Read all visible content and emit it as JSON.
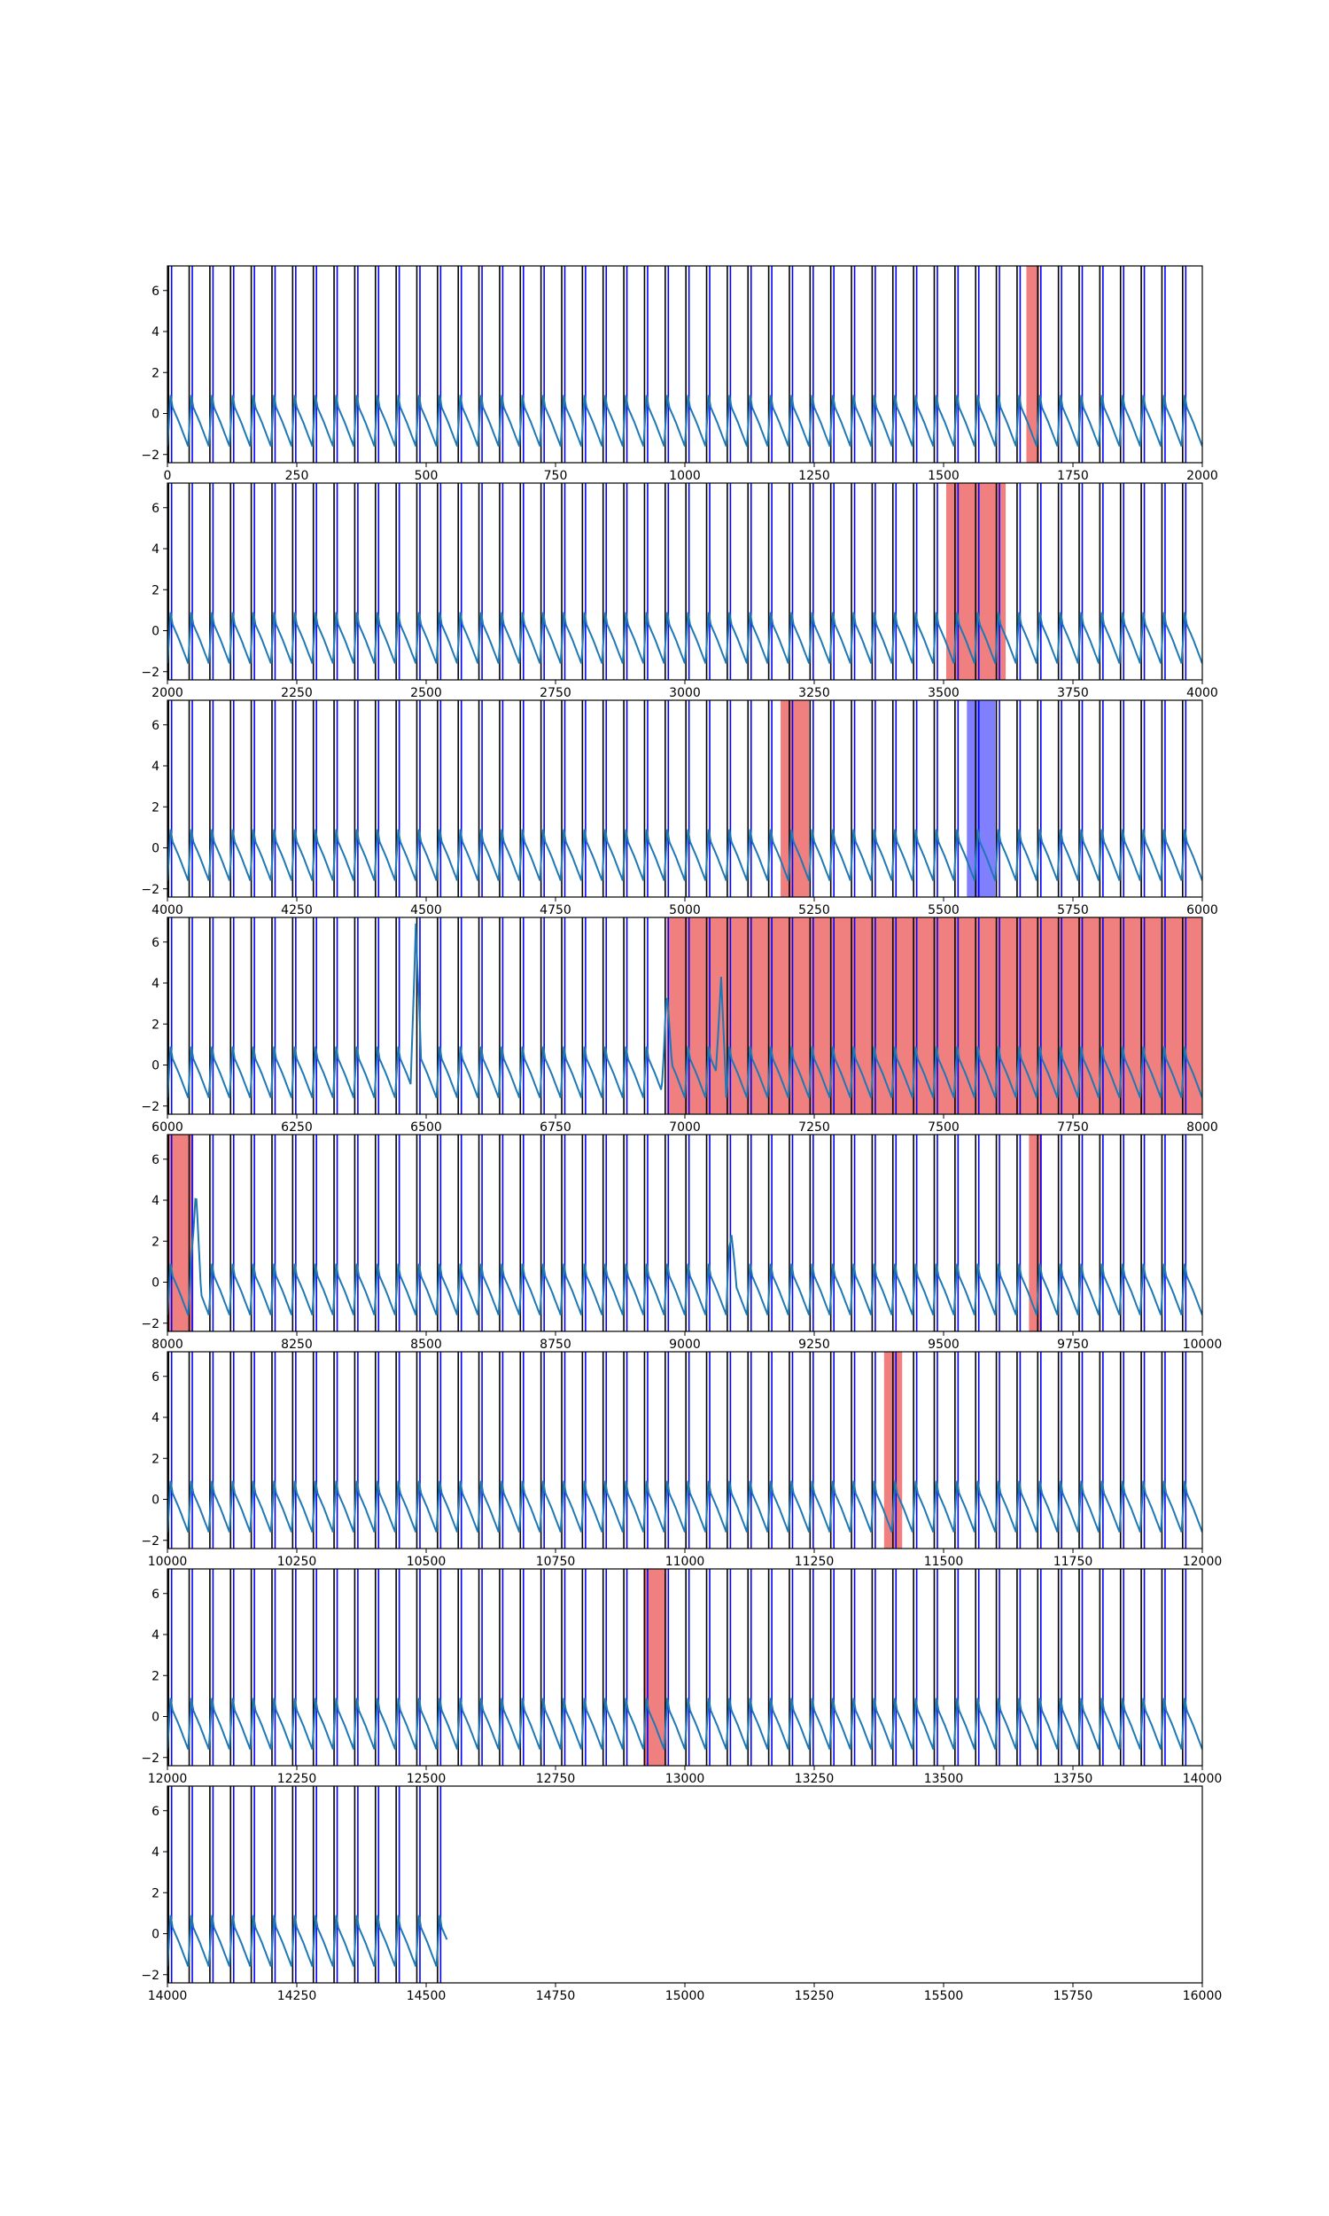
{
  "chart_data": {
    "type": "line",
    "layout": "stacked-panels",
    "ylim": [
      -2.4,
      7.2
    ],
    "yticks": [
      -2,
      0,
      2,
      4,
      6
    ],
    "period": 40,
    "series": [
      {
        "color": "#1f77b4"
      }
    ],
    "marker_colors": {
      "black": "#000000",
      "blue": "#0000ff"
    },
    "region_colors": {
      "red": "#f08080",
      "blue": "#8080ff"
    },
    "panels": [
      {
        "xlim": [
          0,
          2000
        ],
        "xticks": [
          0,
          250,
          500,
          750,
          1000,
          1250,
          1500,
          1750,
          2000
        ],
        "data_end": 2000,
        "regions": [
          {
            "start": 1660,
            "end": 1685,
            "color": "red"
          }
        ],
        "spikes": []
      },
      {
        "xlim": [
          2000,
          4000
        ],
        "xticks": [
          2000,
          2250,
          2500,
          2750,
          3000,
          3250,
          3500,
          3750,
          4000
        ],
        "data_end": 4000,
        "regions": [
          {
            "start": 3505,
            "end": 3620,
            "color": "red"
          }
        ],
        "spikes": []
      },
      {
        "xlim": [
          4000,
          6000
        ],
        "xticks": [
          4000,
          4250,
          4500,
          4750,
          5000,
          5250,
          5500,
          5750,
          6000
        ],
        "data_end": 6000,
        "regions": [
          {
            "start": 5185,
            "end": 5240,
            "color": "red"
          },
          {
            "start": 5545,
            "end": 5600,
            "color": "blue"
          }
        ],
        "spikes": []
      },
      {
        "xlim": [
          6000,
          8000
        ],
        "xticks": [
          6000,
          6250,
          6500,
          6750,
          7000,
          7250,
          7500,
          7750,
          8000
        ],
        "data_end": 8000,
        "regions": [
          {
            "start": 6965,
            "end": 8000,
            "color": "red"
          }
        ],
        "spikes": [
          {
            "x": 6480,
            "y": 6.9
          },
          {
            "x": 6965,
            "y": 3.5
          },
          {
            "x": 7070,
            "y": 4.3
          }
        ]
      },
      {
        "xlim": [
          8000,
          10000
        ],
        "xticks": [
          8000,
          8250,
          8500,
          8750,
          9000,
          9250,
          9500,
          9750,
          10000
        ],
        "data_end": 10000,
        "regions": [
          {
            "start": 8000,
            "end": 8050,
            "color": "red"
          },
          {
            "start": 9665,
            "end": 9690,
            "color": "red"
          }
        ],
        "spikes": [
          {
            "x": 8055,
            "y": 4.5
          },
          {
            "x": 9090,
            "y": 2.3
          }
        ]
      },
      {
        "xlim": [
          10000,
          12000
        ],
        "xticks": [
          10000,
          10250,
          10500,
          10750,
          11000,
          11250,
          11500,
          11750,
          12000
        ],
        "data_end": 12000,
        "regions": [
          {
            "start": 11385,
            "end": 11420,
            "color": "red"
          }
        ],
        "spikes": []
      },
      {
        "xlim": [
          12000,
          14000
        ],
        "xticks": [
          12000,
          12250,
          12500,
          12750,
          13000,
          13250,
          13500,
          13750,
          14000
        ],
        "data_end": 14000,
        "regions": [
          {
            "start": 12920,
            "end": 12965,
            "color": "red"
          }
        ],
        "spikes": []
      },
      {
        "xlim": [
          14000,
          16000
        ],
        "xticks": [
          14000,
          14250,
          14500,
          14750,
          15000,
          15250,
          15500,
          15750,
          16000
        ],
        "data_end": 14540,
        "regions": [],
        "spikes": []
      }
    ]
  }
}
